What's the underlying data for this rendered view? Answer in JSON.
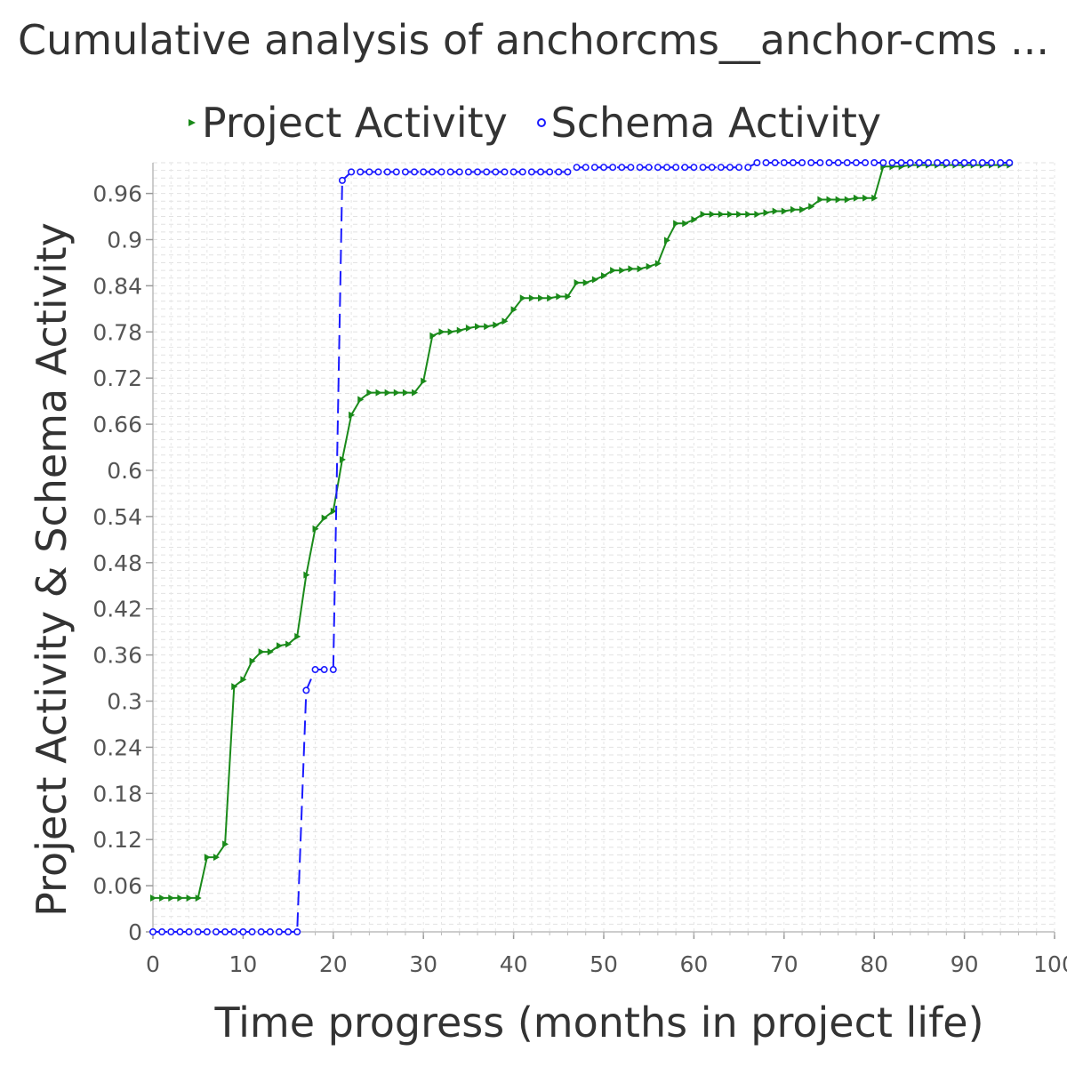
{
  "chart_data": {
    "type": "line",
    "title": "Cumulative analysis of anchorcms__anchor-cms ...",
    "xlabel": "Time progress (months in project life)",
    "ylabel": "Project Activity & Schema Activity",
    "xlim": [
      0,
      100
    ],
    "ylim": [
      0,
      1.0
    ],
    "x_ticks": [
      "0",
      "10",
      "20",
      "30",
      "40",
      "50",
      "60",
      "70",
      "80",
      "90",
      "100"
    ],
    "y_ticks": [
      "0",
      "0.06",
      "0.12",
      "0.18",
      "0.24",
      "0.3",
      "0.36",
      "0.42",
      "0.48",
      "0.54",
      "0.6",
      "0.66",
      "0.72",
      "0.78",
      "0.84",
      "0.9",
      "0.96"
    ],
    "grid": true,
    "legend_position": "top",
    "series": [
      {
        "name": "Project Activity",
        "color": "#1a8a1a",
        "marker": "triangle-right",
        "line_style": "solid",
        "points": [
          [
            0,
            0.044
          ],
          [
            1,
            0.044
          ],
          [
            2,
            0.044
          ],
          [
            3,
            0.044
          ],
          [
            4,
            0.044
          ],
          [
            5,
            0.044
          ],
          [
            6,
            0.097
          ],
          [
            7,
            0.097
          ],
          [
            8,
            0.114
          ],
          [
            9,
            0.319
          ],
          [
            10,
            0.328
          ],
          [
            11,
            0.352
          ],
          [
            12,
            0.364
          ],
          [
            13,
            0.364
          ],
          [
            14,
            0.372
          ],
          [
            15,
            0.374
          ],
          [
            16,
            0.384
          ],
          [
            17,
            0.464
          ],
          [
            18,
            0.524
          ],
          [
            19,
            0.538
          ],
          [
            20,
            0.547
          ],
          [
            21,
            0.614
          ],
          [
            22,
            0.672
          ],
          [
            23,
            0.692
          ],
          [
            24,
            0.701
          ],
          [
            25,
            0.701
          ],
          [
            26,
            0.701
          ],
          [
            27,
            0.701
          ],
          [
            28,
            0.701
          ],
          [
            29,
            0.701
          ],
          [
            30,
            0.716
          ],
          [
            31,
            0.775
          ],
          [
            32,
            0.78
          ],
          [
            33,
            0.78
          ],
          [
            34,
            0.782
          ],
          [
            35,
            0.785
          ],
          [
            36,
            0.787
          ],
          [
            37,
            0.787
          ],
          [
            38,
            0.789
          ],
          [
            39,
            0.794
          ],
          [
            40,
            0.809
          ],
          [
            41,
            0.824
          ],
          [
            42,
            0.824
          ],
          [
            43,
            0.824
          ],
          [
            44,
            0.824
          ],
          [
            45,
            0.826
          ],
          [
            46,
            0.826
          ],
          [
            47,
            0.844
          ],
          [
            48,
            0.844
          ],
          [
            49,
            0.848
          ],
          [
            50,
            0.853
          ],
          [
            51,
            0.86
          ],
          [
            52,
            0.86
          ],
          [
            53,
            0.862
          ],
          [
            54,
            0.862
          ],
          [
            55,
            0.865
          ],
          [
            56,
            0.869
          ],
          [
            57,
            0.899
          ],
          [
            58,
            0.921
          ],
          [
            59,
            0.921
          ],
          [
            60,
            0.926
          ],
          [
            61,
            0.933
          ],
          [
            62,
            0.933
          ],
          [
            63,
            0.933
          ],
          [
            64,
            0.933
          ],
          [
            65,
            0.933
          ],
          [
            66,
            0.933
          ],
          [
            67,
            0.933
          ],
          [
            68,
            0.935
          ],
          [
            69,
            0.937
          ],
          [
            70,
            0.937
          ],
          [
            71,
            0.939
          ],
          [
            72,
            0.939
          ],
          [
            73,
            0.943
          ],
          [
            74,
            0.952
          ],
          [
            75,
            0.952
          ],
          [
            76,
            0.952
          ],
          [
            77,
            0.952
          ],
          [
            78,
            0.954
          ],
          [
            79,
            0.954
          ],
          [
            80,
            0.954
          ],
          [
            81,
            0.995
          ],
          [
            82,
            0.995
          ],
          [
            83,
            0.995
          ],
          [
            84,
            0.997
          ],
          [
            85,
            0.997
          ],
          [
            86,
            0.997
          ],
          [
            87,
            0.997
          ],
          [
            88,
            0.997
          ],
          [
            89,
            0.997
          ],
          [
            90,
            0.997
          ],
          [
            91,
            0.997
          ],
          [
            92,
            0.997
          ],
          [
            93,
            0.997
          ],
          [
            94,
            0.997
          ],
          [
            95,
            0.997
          ]
        ]
      },
      {
        "name": "Schema Activity",
        "color": "#1a1aff",
        "marker": "circle",
        "line_style": "dashed",
        "points": [
          [
            0,
            0
          ],
          [
            1,
            0
          ],
          [
            2,
            0
          ],
          [
            3,
            0
          ],
          [
            4,
            0
          ],
          [
            5,
            0
          ],
          [
            6,
            0
          ],
          [
            7,
            0
          ],
          [
            8,
            0
          ],
          [
            9,
            0
          ],
          [
            10,
            0
          ],
          [
            11,
            0
          ],
          [
            12,
            0
          ],
          [
            13,
            0
          ],
          [
            14,
            0
          ],
          [
            15,
            0
          ],
          [
            16,
            0
          ],
          [
            17,
            0.314
          ],
          [
            18,
            0.341
          ],
          [
            19,
            0.341
          ],
          [
            20,
            0.341
          ],
          [
            21,
            0.977
          ],
          [
            22,
            0.988
          ],
          [
            23,
            0.988
          ],
          [
            24,
            0.988
          ],
          [
            25,
            0.988
          ],
          [
            26,
            0.988
          ],
          [
            27,
            0.988
          ],
          [
            28,
            0.988
          ],
          [
            29,
            0.988
          ],
          [
            30,
            0.988
          ],
          [
            31,
            0.988
          ],
          [
            32,
            0.988
          ],
          [
            33,
            0.988
          ],
          [
            34,
            0.988
          ],
          [
            35,
            0.988
          ],
          [
            36,
            0.988
          ],
          [
            37,
            0.988
          ],
          [
            38,
            0.988
          ],
          [
            39,
            0.988
          ],
          [
            40,
            0.988
          ],
          [
            41,
            0.988
          ],
          [
            42,
            0.988
          ],
          [
            43,
            0.988
          ],
          [
            44,
            0.988
          ],
          [
            45,
            0.988
          ],
          [
            46,
            0.988
          ],
          [
            47,
            0.994
          ],
          [
            48,
            0.994
          ],
          [
            49,
            0.994
          ],
          [
            50,
            0.994
          ],
          [
            51,
            0.994
          ],
          [
            52,
            0.994
          ],
          [
            53,
            0.994
          ],
          [
            54,
            0.994
          ],
          [
            55,
            0.994
          ],
          [
            56,
            0.994
          ],
          [
            57,
            0.994
          ],
          [
            58,
            0.994
          ],
          [
            59,
            0.994
          ],
          [
            60,
            0.994
          ],
          [
            61,
            0.994
          ],
          [
            62,
            0.994
          ],
          [
            63,
            0.994
          ],
          [
            64,
            0.994
          ],
          [
            65,
            0.994
          ],
          [
            66,
            0.994
          ],
          [
            67,
            1.0
          ],
          [
            68,
            1.0
          ],
          [
            69,
            1.0
          ],
          [
            70,
            1.0
          ],
          [
            71,
            1.0
          ],
          [
            72,
            1.0
          ],
          [
            73,
            1.0
          ],
          [
            74,
            1.0
          ],
          [
            75,
            1.0
          ],
          [
            76,
            1.0
          ],
          [
            77,
            1.0
          ],
          [
            78,
            1.0
          ],
          [
            79,
            1.0
          ],
          [
            80,
            1.0
          ],
          [
            81,
            1.0
          ],
          [
            82,
            1.0
          ],
          [
            83,
            1.0
          ],
          [
            84,
            1.0
          ],
          [
            85,
            1.0
          ],
          [
            86,
            1.0
          ],
          [
            87,
            1.0
          ],
          [
            88,
            1.0
          ],
          [
            89,
            1.0
          ],
          [
            90,
            1.0
          ],
          [
            91,
            1.0
          ],
          [
            92,
            1.0
          ],
          [
            93,
            1.0
          ],
          [
            94,
            1.0
          ],
          [
            95,
            1.0
          ]
        ]
      }
    ]
  }
}
